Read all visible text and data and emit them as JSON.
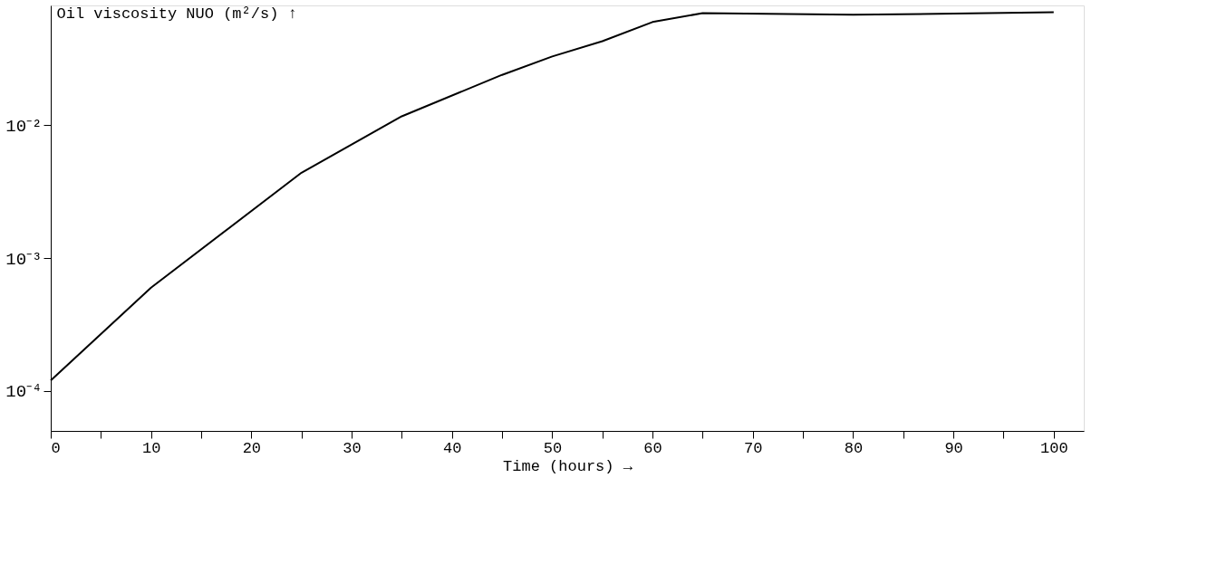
{
  "chart_data": {
    "type": "line",
    "xlabel": "Time (hours) →",
    "ylabel": "Oil viscosity NUO (m²/s) ↑",
    "x": [
      0,
      10,
      25,
      35,
      45,
      50,
      55,
      60,
      65,
      80,
      100
    ],
    "series": [
      {
        "color": "#000000",
        "values": [
          0.00012,
          0.0006,
          0.0044,
          0.0117,
          0.024,
          0.033,
          0.043,
          0.06,
          0.07,
          0.068,
          0.071
        ]
      }
    ],
    "log": "y",
    "xlim": [
      0,
      103
    ],
    "ylim": [
      5e-05,
      0.08
    ],
    "xticks": [
      0,
      {
        "value": 5,
        "label": null
      },
      10,
      {
        "value": 15,
        "label": null
      },
      20,
      {
        "value": 25,
        "label": null
      },
      30,
      {
        "value": 35,
        "label": null
      },
      40,
      {
        "value": 45,
        "label": null
      },
      50,
      {
        "value": 55,
        "label": null
      },
      60,
      {
        "value": 65,
        "label": null
      },
      70,
      {
        "value": 75,
        "label": null
      },
      80,
      {
        "value": 85,
        "label": null
      },
      90,
      {
        "value": 95,
        "label": null
      },
      100
    ],
    "yticks": [
      {
        "value": 0.0001,
        "label": "10⁻⁴"
      },
      {
        "value": 0.001,
        "label": "10⁻³"
      },
      {
        "value": 0.01,
        "label": "10⁻²"
      }
    ],
    "grid": false,
    "marker": "none",
    "line_style": "solid"
  }
}
